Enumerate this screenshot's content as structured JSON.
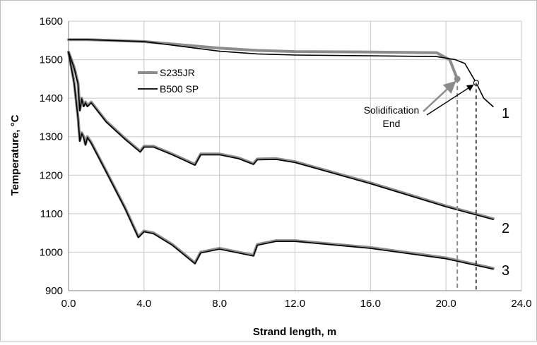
{
  "chart_data": {
    "type": "line",
    "xlabel": "Strand length, m",
    "ylabel": "Temperature, °C",
    "xlim": [
      0,
      24
    ],
    "ylim": [
      900,
      1600
    ],
    "x_ticks": [
      "0.0",
      "4.0",
      "8.0",
      "12.0",
      "16.0",
      "20.0",
      "24.0"
    ],
    "y_ticks": [
      "900",
      "1000",
      "1100",
      "1200",
      "1300",
      "1400",
      "1500",
      "1600"
    ],
    "grid": true,
    "legend_position": "top-left",
    "legend": [
      {
        "name": "S235JR",
        "color": "#8c8c8c"
      },
      {
        "name": "B500 SP",
        "color": "#000000"
      }
    ],
    "annotation": {
      "line1": "Solidification",
      "line2": "End",
      "s235jr_end": {
        "x": 20.6,
        "y": 1450
      },
      "b500sp_end": {
        "x": 21.6,
        "y": 1440
      }
    },
    "curve_labels": [
      "1",
      "2",
      "3"
    ],
    "series": [
      {
        "name": "S235JR",
        "color": "#8c8c8c",
        "curves": [
          {
            "x": [
              0,
              1,
              4,
              8,
              10,
              12,
              16,
              19.5,
              20.2,
              20.6
            ],
            "y": [
              1552,
              1552,
              1547,
              1530,
              1524,
              1521,
              1520,
              1518,
              1500,
              1450
            ]
          },
          {
            "x": [
              0,
              0.3,
              0.5,
              0.6,
              0.7,
              0.8,
              0.9,
              1.0,
              1.2,
              2.0,
              3.0,
              3.8,
              4.0,
              4.5,
              5.5,
              6.7,
              7.0,
              8.0,
              9.0,
              9.8,
              10.0,
              11.0,
              12.0,
              16.0,
              20.0,
              22.5
            ],
            "y": [
              1520,
              1480,
              1440,
              1370,
              1400,
              1380,
              1390,
              1380,
              1390,
              1340,
              1295,
              1262,
              1275,
              1275,
              1255,
              1228,
              1255,
              1255,
              1245,
              1230,
              1242,
              1243,
              1235,
              1180,
              1120,
              1087
            ]
          },
          {
            "x": [
              0,
              0.3,
              0.5,
              0.6,
              0.7,
              0.8,
              0.9,
              1.0,
              1.2,
              2.0,
              3.0,
              3.7,
              4.0,
              4.5,
              5.5,
              6.7,
              7.0,
              8.0,
              9.0,
              9.8,
              10.0,
              11.0,
              12.0,
              16.0,
              20.0,
              22.5
            ],
            "y": [
              1520,
              1440,
              1350,
              1290,
              1310,
              1300,
              1280,
              1300,
              1285,
              1210,
              1115,
              1040,
              1055,
              1050,
              1020,
              972,
              1000,
              1010,
              1000,
              992,
              1020,
              1030,
              1030,
              1012,
              985,
              958
            ]
          }
        ]
      },
      {
        "name": "B500 SP",
        "color": "#000000",
        "curves": [
          {
            "x": [
              0,
              1,
              4,
              8,
              10,
              12,
              16,
              19.5,
              20.5,
              21.0,
              21.6,
              22.0,
              22.5
            ],
            "y": [
              1552,
              1552,
              1547,
              1522,
              1515,
              1512,
              1510,
              1508,
              1500,
              1490,
              1440,
              1400,
              1378
            ]
          },
          {
            "x": [
              0,
              0.3,
              0.5,
              0.6,
              0.7,
              0.8,
              0.9,
              1.0,
              1.2,
              2.0,
              3.0,
              3.8,
              4.0,
              4.5,
              5.5,
              6.7,
              7.0,
              8.0,
              9.0,
              9.8,
              10.0,
              11.0,
              12.0,
              16.0,
              20.0,
              22.5
            ],
            "y": [
              1520,
              1478,
              1437,
              1367,
              1398,
              1378,
              1388,
              1378,
              1388,
              1338,
              1293,
              1260,
              1273,
              1273,
              1253,
              1226,
              1253,
              1253,
              1243,
              1228,
              1240,
              1241,
              1233,
              1178,
              1118,
              1085
            ]
          },
          {
            "x": [
              0,
              0.3,
              0.5,
              0.6,
              0.7,
              0.8,
              0.9,
              1.0,
              1.2,
              2.0,
              3.0,
              3.7,
              4.0,
              4.5,
              5.5,
              6.7,
              7.0,
              8.0,
              9.0,
              9.8,
              10.0,
              11.0,
              12.0,
              16.0,
              20.0,
              22.5
            ],
            "y": [
              1518,
              1438,
              1348,
              1288,
              1308,
              1298,
              1278,
              1298,
              1283,
              1208,
              1113,
              1038,
              1053,
              1048,
              1018,
              970,
              998,
              1008,
              998,
              990,
              1018,
              1028,
              1028,
              1010,
              983,
              956
            ]
          }
        ]
      }
    ]
  }
}
